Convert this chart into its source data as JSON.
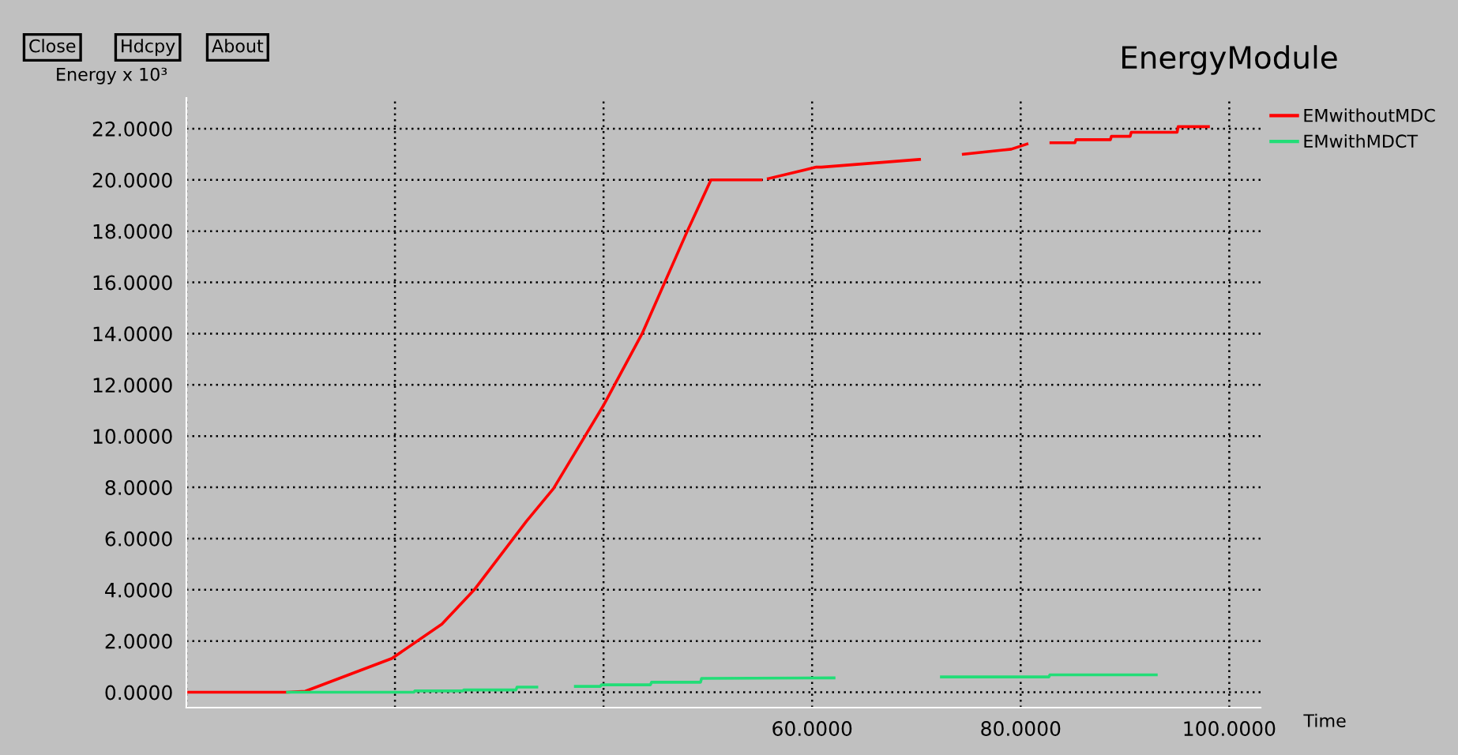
{
  "chart_data": {
    "type": "line",
    "title": "EnergyModule",
    "xlabel": "Time",
    "ylabel": "Energy x 10³",
    "annotations": [
      "Close",
      "Hdcpy",
      "About"
    ],
    "xlim": [
      0,
      103
    ],
    "ylim": [
      -0.6,
      23.2
    ],
    "xticks": [
      {
        "value": 0,
        "label": null
      },
      {
        "value": 20,
        "label": null
      },
      {
        "value": 40,
        "label": null
      },
      {
        "value": 60,
        "label": "60.0000"
      },
      {
        "value": 80,
        "label": "80.0000"
      },
      {
        "value": 100,
        "label": "100.0000"
      }
    ],
    "yticks": [
      {
        "value": 0,
        "label": "0.0000"
      },
      {
        "value": 2,
        "label": "2.0000"
      },
      {
        "value": 4,
        "label": "4.0000"
      },
      {
        "value": 6,
        "label": "6.0000"
      },
      {
        "value": 8,
        "label": "8.0000"
      },
      {
        "value": 10,
        "label": "10.0000"
      },
      {
        "value": 12,
        "label": "12.0000"
      },
      {
        "value": 14,
        "label": "14.0000"
      },
      {
        "value": 16,
        "label": "16.0000"
      },
      {
        "value": 18,
        "label": "18.0000"
      },
      {
        "value": 20,
        "label": "20.0000"
      },
      {
        "value": 22,
        "label": "22.0000"
      }
    ],
    "grid": true,
    "legend": "top right",
    "marker": "none",
    "line_style": "solid",
    "series": [
      {
        "name": "EMwithoutMDC",
        "color": "#ff0000",
        "x": [
          0,
          9.7,
          11.4,
          19.7,
          24.5,
          27.6,
          32.6,
          35.2,
          40.0,
          43.7,
          48.0,
          50.3,
          55.1,
          55.5,
          55.8,
          60.4,
          60.9,
          70.3,
          72,
          74.5,
          79.1,
          80.6,
          81.5,
          82.9,
          85.2,
          85.3,
          88.6,
          88.7,
          90.5,
          90.6,
          95.0,
          95.1,
          98.0
        ],
        "values": [
          0,
          0,
          0.04,
          1.32,
          2.66,
          4.0,
          6.67,
          7.95,
          11.2,
          14.0,
          17.97,
          20.0,
          20.0,
          null,
          20.05,
          20.5,
          20.5,
          20.8,
          null,
          21.0,
          21.2,
          21.4,
          null,
          21.45,
          21.45,
          21.57,
          21.57,
          21.7,
          21.7,
          21.86,
          21.86,
          22.08,
          22.08
        ]
      },
      {
        "name": "EMwithMDCT",
        "color": "#22dd77",
        "x": [
          9.7,
          21.8,
          21.9,
          26.5,
          26.6,
          31.6,
          31.7,
          33.6,
          35.5,
          37.3,
          39.7,
          39.8,
          44.5,
          44.6,
          49.3,
          49.4,
          62.1,
          67,
          72.4,
          82.7,
          82.8,
          93.0
        ],
        "values": [
          0,
          0,
          0.05,
          0.05,
          0.09,
          0.09,
          0.2,
          0.2,
          null,
          0.23,
          0.23,
          0.29,
          0.29,
          0.39,
          0.39,
          0.54,
          0.56,
          null,
          0.6,
          0.6,
          0.68,
          0.68
        ]
      }
    ]
  }
}
